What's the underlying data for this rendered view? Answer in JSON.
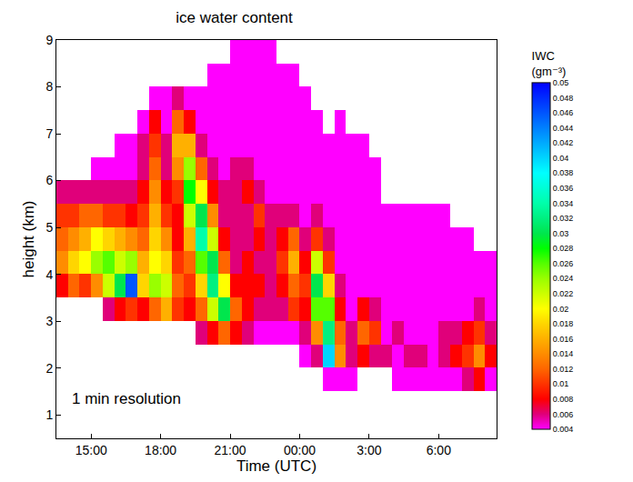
{
  "chart_data": {
    "type": "heatmap",
    "title": "ice water content",
    "xlabel": "Time (UTC)",
    "ylabel": "height (km)",
    "colorbar_title": "IWC (gm⁻³)",
    "annotations": [
      "1 min resolution"
    ],
    "xlim": [
      13.5,
      32.5
    ],
    "xticks": [
      {
        "value": 15,
        "label": "15:00"
      },
      {
        "value": 18,
        "label": "18:00"
      },
      {
        "value": 21,
        "label": "21:00"
      },
      {
        "value": 24,
        "label": "00:00"
      },
      {
        "value": 27,
        "label": "3:00"
      },
      {
        "value": 30,
        "label": "6:00"
      }
    ],
    "ylim": [
      0.5,
      9
    ],
    "yticks": [
      1,
      2,
      3,
      4,
      5,
      6,
      7,
      8,
      9
    ],
    "zlim": [
      0.004,
      0.05
    ],
    "zticks": [
      0.004,
      0.006,
      0.008,
      0.01,
      0.012,
      0.014,
      0.016,
      0.018,
      0.02,
      0.022,
      0.024,
      0.026,
      0.028,
      0.03,
      0.032,
      0.034,
      0.036,
      0.038,
      0.04,
      0.042,
      0.044,
      0.046,
      0.048,
      0.05
    ],
    "x": [
      13.75,
      14.25,
      14.75,
      15.25,
      15.75,
      16.25,
      16.75,
      17.25,
      17.75,
      18.25,
      18.75,
      19.25,
      19.75,
      20.25,
      20.75,
      21.25,
      21.75,
      22.25,
      22.75,
      23.25,
      23.75,
      24.25,
      24.75,
      25.25,
      25.75,
      26.25,
      26.75,
      27.25,
      27.75,
      28.25,
      28.75,
      29.25,
      29.75,
      30.25,
      30.75,
      31.25,
      31.75,
      32.25
    ],
    "y": [
      1.75,
      2.25,
      2.75,
      3.25,
      3.75,
      4.25,
      4.75,
      5.25,
      5.75,
      6.25,
      6.75,
      7.25,
      7.75,
      8.25,
      8.75
    ],
    "z": [
      [
        null,
        null,
        null,
        null,
        0.008,
        0.014,
        0.012,
        0.01,
        0.006,
        null,
        null,
        null,
        null,
        null,
        null
      ],
      [
        null,
        null,
        null,
        null,
        0.012,
        0.018,
        0.014,
        0.01,
        0.006,
        null,
        null,
        null,
        null,
        null,
        null
      ],
      [
        null,
        null,
        null,
        null,
        0.01,
        0.02,
        0.016,
        0.012,
        0.006,
        null,
        null,
        null,
        null,
        null,
        null
      ],
      [
        null,
        null,
        null,
        null,
        0.014,
        0.024,
        0.02,
        0.012,
        0.006,
        0.004,
        null,
        null,
        null,
        null,
        null
      ],
      [
        null,
        null,
        null,
        0.006,
        0.022,
        0.026,
        0.018,
        0.01,
        0.006,
        0.004,
        null,
        null,
        null,
        null,
        null
      ],
      [
        null,
        null,
        null,
        0.008,
        0.03,
        0.022,
        0.016,
        0.01,
        0.006,
        0.004,
        0.004,
        null,
        null,
        null,
        null
      ],
      [
        null,
        null,
        null,
        0.01,
        0.046,
        0.024,
        0.014,
        0.008,
        0.006,
        0.004,
        0.004,
        null,
        null,
        null,
        null
      ],
      [
        null,
        null,
        null,
        0.008,
        0.018,
        0.016,
        0.012,
        0.01,
        0.008,
        0.006,
        0.006,
        0.004,
        null,
        null,
        null
      ],
      [
        null,
        null,
        null,
        0.012,
        0.024,
        0.02,
        0.018,
        0.016,
        0.014,
        0.012,
        0.01,
        0.008,
        0.004,
        null,
        null
      ],
      [
        null,
        null,
        null,
        0.016,
        0.022,
        0.018,
        0.014,
        0.01,
        0.008,
        0.006,
        0.006,
        0.004,
        0.004,
        null,
        null
      ],
      [
        null,
        null,
        null,
        0.01,
        0.012,
        0.01,
        0.008,
        0.008,
        0.01,
        0.014,
        0.016,
        0.012,
        0.006,
        null,
        null
      ],
      [
        null,
        null,
        null,
        0.008,
        0.01,
        0.012,
        0.016,
        0.022,
        0.028,
        0.024,
        0.016,
        0.008,
        0.004,
        null,
        null
      ],
      [
        null,
        null,
        0.006,
        0.012,
        0.018,
        0.026,
        0.034,
        0.03,
        0.02,
        0.012,
        0.006,
        0.004,
        0.004,
        null,
        null
      ],
      [
        null,
        null,
        0.008,
        0.022,
        0.032,
        0.03,
        0.022,
        0.014,
        0.008,
        0.006,
        0.004,
        0.004,
        0.004,
        0.004,
        null
      ],
      [
        null,
        null,
        0.012,
        0.03,
        0.02,
        0.012,
        0.008,
        0.006,
        0.006,
        0.004,
        0.004,
        0.004,
        0.004,
        0.004,
        null
      ],
      [
        null,
        null,
        0.008,
        0.012,
        0.008,
        0.006,
        0.006,
        0.006,
        0.006,
        0.006,
        0.004,
        0.004,
        0.004,
        0.004,
        0.004
      ],
      [
        null,
        null,
        0.006,
        0.008,
        0.008,
        0.008,
        0.006,
        0.006,
        0.008,
        0.006,
        0.004,
        0.004,
        0.004,
        0.004,
        0.004
      ],
      [
        null,
        null,
        0.004,
        0.006,
        0.008,
        0.006,
        0.008,
        0.01,
        0.006,
        0.004,
        0.004,
        0.004,
        0.004,
        0.004,
        0.004
      ],
      [
        null,
        null,
        0.004,
        0.006,
        0.006,
        0.006,
        0.006,
        0.006,
        0.004,
        0.004,
        0.004,
        0.004,
        0.004,
        0.004,
        0.004
      ],
      [
        null,
        null,
        0.004,
        0.006,
        0.008,
        0.01,
        0.008,
        0.006,
        0.004,
        0.004,
        0.004,
        0.004,
        0.004,
        0.004,
        null
      ],
      [
        null,
        null,
        0.004,
        0.01,
        0.012,
        0.016,
        0.012,
        0.006,
        0.004,
        0.004,
        0.004,
        0.004,
        0.004,
        0.004,
        null
      ],
      [
        null,
        0.004,
        0.006,
        0.008,
        0.01,
        0.008,
        0.006,
        0.004,
        0.004,
        0.004,
        0.004,
        0.004,
        0.004,
        null,
        null
      ],
      [
        null,
        0.006,
        0.014,
        0.026,
        0.03,
        0.022,
        0.01,
        0.006,
        0.004,
        0.004,
        0.004,
        0.004,
        null,
        null,
        null
      ],
      [
        0.004,
        0.04,
        0.032,
        0.026,
        0.018,
        0.01,
        0.006,
        0.004,
        0.004,
        0.004,
        0.004,
        null,
        null,
        null,
        null
      ],
      [
        0.004,
        0.014,
        0.012,
        0.008,
        0.006,
        0.004,
        0.004,
        0.004,
        0.004,
        0.004,
        0.004,
        0.004,
        null,
        null,
        null
      ],
      [
        0.004,
        0.006,
        0.006,
        0.004,
        0.004,
        0.004,
        0.004,
        0.004,
        0.004,
        0.004,
        0.004,
        null,
        null,
        null,
        null
      ],
      [
        null,
        0.008,
        0.012,
        0.008,
        0.004,
        0.004,
        0.004,
        0.004,
        0.004,
        0.004,
        0.004,
        null,
        null,
        null,
        null
      ],
      [
        null,
        0.006,
        0.01,
        0.006,
        0.004,
        0.004,
        0.004,
        0.004,
        0.004,
        0.004,
        null,
        null,
        null,
        null,
        null
      ],
      [
        null,
        0.006,
        0.004,
        0.004,
        0.004,
        0.004,
        0.004,
        0.004,
        null,
        null,
        null,
        null,
        null,
        null,
        null
      ],
      [
        0.004,
        0.004,
        0.006,
        0.004,
        0.004,
        0.004,
        0.004,
        0.004,
        null,
        null,
        null,
        null,
        null,
        null,
        null
      ],
      [
        0.004,
        0.006,
        0.004,
        0.004,
        0.004,
        0.004,
        0.004,
        0.004,
        null,
        null,
        null,
        null,
        null,
        null,
        null
      ],
      [
        0.004,
        0.006,
        0.004,
        0.004,
        0.004,
        0.004,
        0.004,
        0.004,
        null,
        null,
        null,
        null,
        null,
        null,
        null
      ],
      [
        0.004,
        0.004,
        0.004,
        0.004,
        0.004,
        0.004,
        0.004,
        0.004,
        null,
        null,
        null,
        null,
        null,
        null,
        null
      ],
      [
        0.004,
        0.006,
        0.006,
        0.004,
        0.004,
        0.004,
        0.004,
        0.004,
        null,
        null,
        null,
        null,
        null,
        null,
        null
      ],
      [
        0.004,
        0.008,
        0.006,
        0.004,
        0.004,
        0.004,
        0.004,
        null,
        null,
        null,
        null,
        null,
        null,
        null,
        null
      ],
      [
        0.006,
        0.01,
        0.008,
        0.004,
        0.004,
        0.004,
        0.004,
        null,
        null,
        null,
        null,
        null,
        null,
        null,
        null
      ],
      [
        0.008,
        0.014,
        0.01,
        0.006,
        0.004,
        0.004,
        null,
        null,
        null,
        null,
        null,
        null,
        null,
        null,
        null
      ],
      [
        0.004,
        0.008,
        0.006,
        0.004,
        0.004,
        0.004,
        null,
        null,
        null,
        null,
        null,
        null,
        null,
        null,
        null
      ]
    ]
  }
}
